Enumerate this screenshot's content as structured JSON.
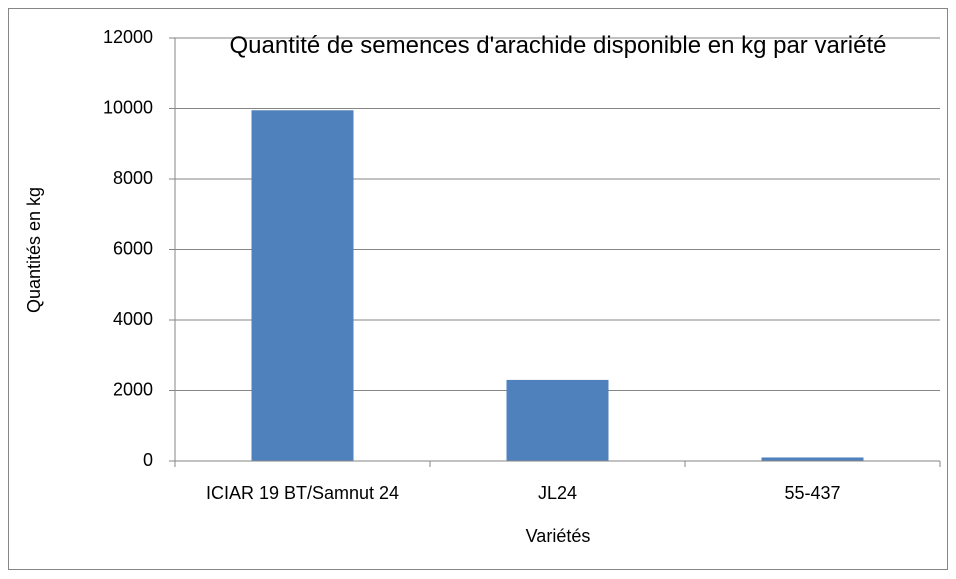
{
  "chart_data": {
    "type": "bar",
    "title": "Quantité de semences d'arachide disponible en kg par variété",
    "x_label": "Variétés",
    "y_label": "Quantités en kg",
    "categories": [
      "ICIAR 19 BT/Samnut 24",
      "JL24",
      "55-437"
    ],
    "values": [
      9950,
      2300,
      100
    ],
    "color": "#4f81bd",
    "ylim": [
      0,
      12000
    ],
    "yticks": [
      0,
      2000,
      4000,
      6000,
      8000,
      10000,
      12000
    ],
    "grid": true
  }
}
